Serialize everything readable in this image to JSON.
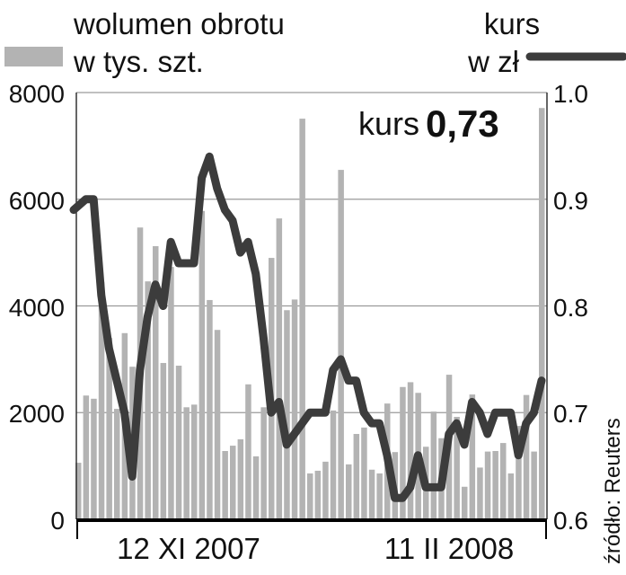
{
  "chart_data": {
    "type": "bar+line",
    "legend": {
      "bars_label_line1": "wolumen obrotu",
      "bars_label_line2": "w tys. szt.",
      "line_label_line1": "kurs",
      "line_label_line2": "w zł"
    },
    "annotation": {
      "label": "kurs",
      "value": "0,73"
    },
    "source": "źródło: Reuters",
    "x_tick_labels": [
      "12 XI 2007",
      "11 II 2008"
    ],
    "y_left": {
      "lim": [
        0,
        8000
      ],
      "ticks": [
        "0",
        "2000",
        "4000",
        "6000",
        "8000"
      ]
    },
    "y_right": {
      "lim": [
        0.6,
        1.0
      ],
      "ticks": [
        "0.6",
        "0.7",
        "0.8",
        "0.9",
        "1.0"
      ]
    },
    "grid": true,
    "colors": {
      "bars": "#b3b3b3",
      "line": "#3c3c3c",
      "grid": "#9a9a9a",
      "axis": "#000000"
    },
    "series": [
      {
        "type": "bar",
        "axis": "left",
        "values": [
          1060,
          2320,
          2260,
          4450,
          3400,
          2070,
          3490,
          2860,
          5470,
          4460,
          5120,
          2930,
          4730,
          2880,
          2100,
          2150,
          5780,
          4110,
          3550,
          1280,
          1380,
          1500,
          2530,
          1180,
          2100,
          4900,
          5640,
          3920,
          4120,
          7510,
          860,
          910,
          1080,
          2040,
          6550,
          1030,
          1600,
          1720,
          930,
          860,
          2170,
          1260,
          2480,
          2570,
          2370,
          1360,
          2020,
          1520,
          2710,
          1920,
          610,
          2340,
          970,
          1270,
          1280,
          1430,
          860,
          1750,
          2330,
          1270,
          7710
        ]
      },
      {
        "type": "line",
        "axis": "right",
        "values": [
          0.89,
          0.9,
          0.9,
          0.81,
          0.76,
          0.73,
          0.7,
          0.64,
          0.74,
          0.79,
          0.82,
          0.8,
          0.86,
          0.84,
          0.84,
          0.84,
          0.92,
          0.94,
          0.91,
          0.89,
          0.88,
          0.85,
          0.86,
          0.83,
          0.77,
          0.7,
          0.71,
          0.67,
          0.68,
          0.69,
          0.7,
          0.7,
          0.7,
          0.74,
          0.75,
          0.73,
          0.73,
          0.7,
          0.69,
          0.69,
          0.66,
          0.62,
          0.62,
          0.63,
          0.66,
          0.63,
          0.63,
          0.63,
          0.68,
          0.69,
          0.67,
          0.71,
          0.7,
          0.68,
          0.7,
          0.7,
          0.7,
          0.66,
          0.69,
          0.7,
          0.73
        ]
      }
    ]
  }
}
